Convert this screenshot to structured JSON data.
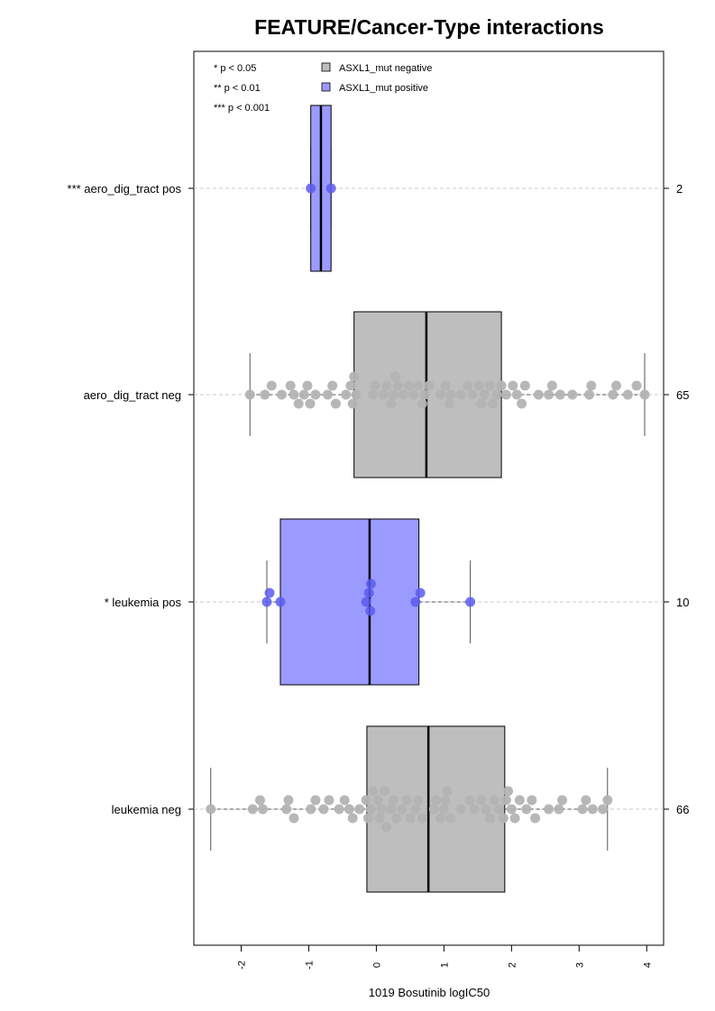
{
  "chart_data": {
    "type": "boxplot",
    "orientation": "horizontal",
    "title": "FEATURE/Cancer-Type interactions",
    "xlabel": "1019 Bosutinib logIC50",
    "xlim": [
      -2.7,
      4.25
    ],
    "xticks": [
      -2,
      -1,
      0,
      1,
      2,
      3,
      4
    ],
    "xtick_labels": [
      "-2",
      "-1",
      "0",
      "1",
      "2",
      "3",
      "4"
    ],
    "grid": "dashed horizontal lines at each group",
    "legend": {
      "placement": "top-left",
      "significance": [
        "* p < 0.05",
        "** p < 0.01",
        "*** p < 0.001"
      ],
      "entries": [
        {
          "label": "ASXL1_mut negative",
          "color": "#bebebe"
        },
        {
          "label": "ASXL1_mut positive",
          "color": "#9b9bff"
        }
      ]
    },
    "colors": {
      "negative_box": "#bebebe",
      "positive_box": "#9b9bff",
      "negative_point": "#b3b3b3",
      "positive_point": "#5c5cf0",
      "median": "#000000",
      "grid": "#c8c8c8"
    },
    "groups": [
      {
        "label": "*** aero_dig_tract pos",
        "status": "positive",
        "n_label": "2",
        "whisker_low": -0.97,
        "q1": -0.97,
        "median": -0.82,
        "q3": -0.67,
        "whisker_high": -0.67,
        "points": [
          -0.97,
          -0.67
        ]
      },
      {
        "label": "aero_dig_tract neg",
        "status": "negative",
        "n_label": "65",
        "whisker_low": -1.87,
        "q1": -0.33,
        "median": 0.74,
        "q3": 1.85,
        "whisker_high": 3.97,
        "points": [
          -1.87,
          -1.65,
          -1.55,
          -1.4,
          -1.27,
          -1.22,
          -1.15,
          -1.07,
          -1.02,
          -0.98,
          -0.9,
          -0.72,
          -0.65,
          -0.6,
          -0.45,
          -0.38,
          -0.35,
          -0.33,
          -0.3,
          -0.05,
          -0.02,
          0.1,
          0.15,
          0.22,
          0.25,
          0.28,
          0.32,
          0.4,
          0.48,
          0.55,
          0.62,
          0.68,
          0.72,
          0.78,
          0.95,
          1.02,
          1.08,
          1.1,
          1.25,
          1.35,
          1.42,
          1.52,
          1.55,
          1.6,
          1.68,
          1.72,
          1.78,
          1.85,
          1.92,
          2.02,
          2.08,
          2.15,
          2.2,
          2.4,
          2.55,
          2.6,
          2.72,
          2.9,
          3.15,
          3.18,
          3.5,
          3.55,
          3.72,
          3.85,
          3.97
        ]
      },
      {
        "label": "* leukemia pos",
        "status": "positive",
        "n_label": "10",
        "whisker_low": -1.62,
        "q1": -1.42,
        "median": -0.1,
        "q3": 0.63,
        "whisker_high": 1.39,
        "points": [
          -1.62,
          -1.58,
          -1.42,
          -0.15,
          -0.11,
          -0.09,
          -0.08,
          0.58,
          0.65,
          1.39
        ]
      },
      {
        "label": "leukemia neg",
        "status": "negative",
        "n_label": "66",
        "whisker_low": -2.45,
        "q1": -0.14,
        "median": 0.77,
        "q3": 1.9,
        "whisker_high": 3.42,
        "points": [
          -2.45,
          -1.83,
          -1.72,
          -1.68,
          -1.33,
          -1.3,
          -1.22,
          -0.97,
          -0.78,
          -0.7,
          -0.55,
          -0.47,
          -0.4,
          -0.35,
          -0.15,
          -0.12,
          -0.08,
          -0.05,
          0.02,
          0.05,
          0.08,
          0.12,
          0.15,
          0.22,
          0.25,
          0.38,
          0.45,
          0.58,
          0.62,
          0.68,
          0.85,
          0.95,
          1.0,
          1.02,
          1.05,
          1.1,
          1.25,
          1.38,
          1.45,
          1.68,
          1.75,
          1.82,
          1.88,
          1.92,
          1.95,
          2.05,
          2.12,
          2.22,
          2.3,
          2.35,
          2.55,
          2.7,
          2.75,
          3.05,
          3.1,
          3.2,
          3.35,
          3.42,
          0.5,
          1.55,
          1.62,
          -0.9,
          0.3,
          2.0,
          0.88,
          -0.25
        ]
      }
    ]
  }
}
